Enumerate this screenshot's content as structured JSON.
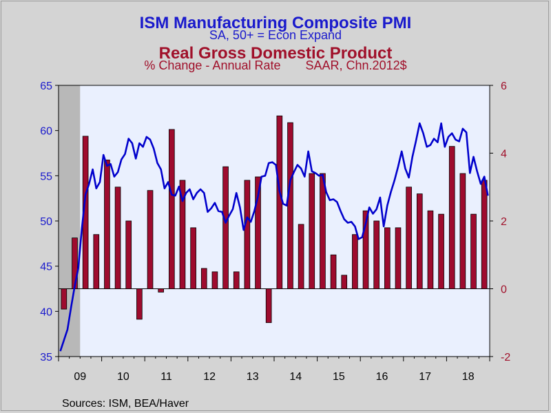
{
  "chart_data": {
    "type": "bar+line",
    "titles": {
      "pmi_title": "ISM Manufacturing Composite PMI",
      "pmi_subtitle": "SA, 50+ = Econ Expand",
      "gdp_title": "Real Gross Domestic Product",
      "gdp_subtitle_1": "% Change - Annual Rate",
      "gdp_subtitle_2": "SAAR, Chn.2012$"
    },
    "source": "Sources:  ISM, BEA/Haver",
    "colors": {
      "pmi": "#0000cc",
      "gdp": "#9e0b2e",
      "plot_bg": "#eaf0fe",
      "left_axis_text": "#1a1acc",
      "right_axis_text": "#a0102a",
      "gray_band": "#b8b8b8"
    },
    "x_labels": [
      "09",
      "10",
      "11",
      "12",
      "13",
      "14",
      "15",
      "16",
      "17",
      "18"
    ],
    "left_axis": {
      "label_series": "pmi",
      "min": 35,
      "max": 65,
      "ticks": [
        35,
        40,
        45,
        50,
        55,
        60,
        65
      ]
    },
    "right_axis": {
      "label_series": "gdp",
      "min": -2,
      "max": 6,
      "ticks": [
        -2,
        0,
        2,
        4,
        6
      ]
    },
    "gdp_series": {
      "name": "Real Gross Domestic Product",
      "quarters": [
        "2009Q1",
        "2009Q2",
        "2009Q3",
        "2009Q4",
        "2010Q1",
        "2010Q2",
        "2010Q3",
        "2010Q4",
        "2011Q1",
        "2011Q2",
        "2011Q3",
        "2011Q4",
        "2012Q1",
        "2012Q2",
        "2012Q3",
        "2012Q4",
        "2013Q1",
        "2013Q2",
        "2013Q3",
        "2013Q4",
        "2014Q1",
        "2014Q2",
        "2014Q3",
        "2014Q4",
        "2015Q1",
        "2015Q2",
        "2015Q3",
        "2015Q4",
        "2016Q1",
        "2016Q2",
        "2016Q3",
        "2016Q4",
        "2017Q1",
        "2017Q2",
        "2017Q3",
        "2017Q4",
        "2018Q1",
        "2018Q2",
        "2018Q3",
        "2018Q4"
      ],
      "values": [
        -0.6,
        1.5,
        4.5,
        1.6,
        3.8,
        3.0,
        2.0,
        -0.9,
        2.9,
        -0.1,
        4.7,
        3.2,
        1.8,
        0.6,
        0.5,
        3.6,
        0.5,
        3.2,
        3.3,
        -1.0,
        5.1,
        4.9,
        1.9,
        3.4,
        3.4,
        1.0,
        0.4,
        1.6,
        2.3,
        2.0,
        1.8,
        1.8,
        3.0,
        2.8,
        2.3,
        2.2,
        4.2,
        3.4,
        2.2,
        3.2
      ]
    },
    "pmi_series": {
      "name": "ISM Manufacturing Composite PMI",
      "months": 120,
      "start": "2009-01",
      "values": [
        35.6,
        36.8,
        38.0,
        40.5,
        42.8,
        44.8,
        49.2,
        52.9,
        54.1,
        55.7,
        53.6,
        54.3,
        57.3,
        56.1,
        56.3,
        54.9,
        55.4,
        56.8,
        57.4,
        59.1,
        58.6,
        56.9,
        58.6,
        58.2,
        59.3,
        59.0,
        58.0,
        56.4,
        55.7,
        53.6,
        54.3,
        52.9,
        52.8,
        53.8,
        52.2,
        53.1,
        53.5,
        52.4,
        53.1,
        53.5,
        53.1,
        51.0,
        51.4,
        52.0,
        51.1,
        51.0,
        49.8,
        50.6,
        51.3,
        53.1,
        51.5,
        49.0,
        50.4,
        49.9,
        51.1,
        52.7,
        54.9,
        55.0,
        56.4,
        56.5,
        56.2,
        53.3,
        51.9,
        51.7,
        54.5,
        55.4,
        56.2,
        55.8,
        54.9,
        57.7,
        55.5,
        55.3,
        55.0,
        55.1,
        53.2,
        52.3,
        52.4,
        52.1,
        51.1,
        50.2,
        49.8,
        49.9,
        49.4,
        48.0,
        48.2,
        49.7,
        51.5,
        50.8,
        51.3,
        52.6,
        49.4,
        51.7,
        53.2,
        54.5,
        56.0,
        57.7,
        55.8,
        54.8,
        57.1,
        58.9,
        60.8,
        59.7,
        58.2,
        58.4,
        59.1,
        58.7,
        60.8,
        58.2,
        59.3,
        59.7,
        59.0,
        58.8,
        60.2,
        59.8,
        55.3,
        57.1,
        55.5,
        54.1,
        54.9,
        52.8
      ]
    }
  }
}
